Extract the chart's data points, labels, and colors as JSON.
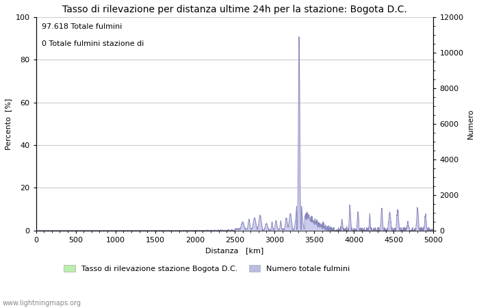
{
  "title": "Tasso di rilevazione per distanza ultime 24h per la stazione: Bogota D.C.",
  "xlabel": "Distanza   [km]",
  "ylabel_left": "Percento  [%]",
  "ylabel_right": "Numero",
  "annotation_line1": "97.618 Totale fulmini",
  "annotation_line2": "0 Totale fulmini stazione di",
  "xlim": [
    0,
    5000
  ],
  "ylim_left": [
    0,
    100
  ],
  "ylim_right": [
    0,
    12000
  ],
  "xticks": [
    0,
    500,
    1000,
    1500,
    2000,
    2500,
    3000,
    3500,
    4000,
    4500,
    5000
  ],
  "yticks_left": [
    0,
    20,
    40,
    60,
    80,
    100
  ],
  "yticks_right": [
    0,
    2000,
    4000,
    6000,
    8000,
    10000,
    12000
  ],
  "legend_label1": "Tasso di rilevazione stazione Bogota D.C.",
  "legend_label2": "Numero totale fulmini",
  "legend_color1": "#bbeeaa",
  "legend_color2": "#bbbbdd",
  "line_color": "#8888bb",
  "fill_color": "#ccccee",
  "bar_color": "#bbeeaa",
  "watermark": "www.lightningmaps.org",
  "background_color": "#ffffff",
  "grid_color": "#cccccc",
  "title_fontsize": 10,
  "label_fontsize": 8,
  "tick_fontsize": 8,
  "annot_fontsize": 8
}
